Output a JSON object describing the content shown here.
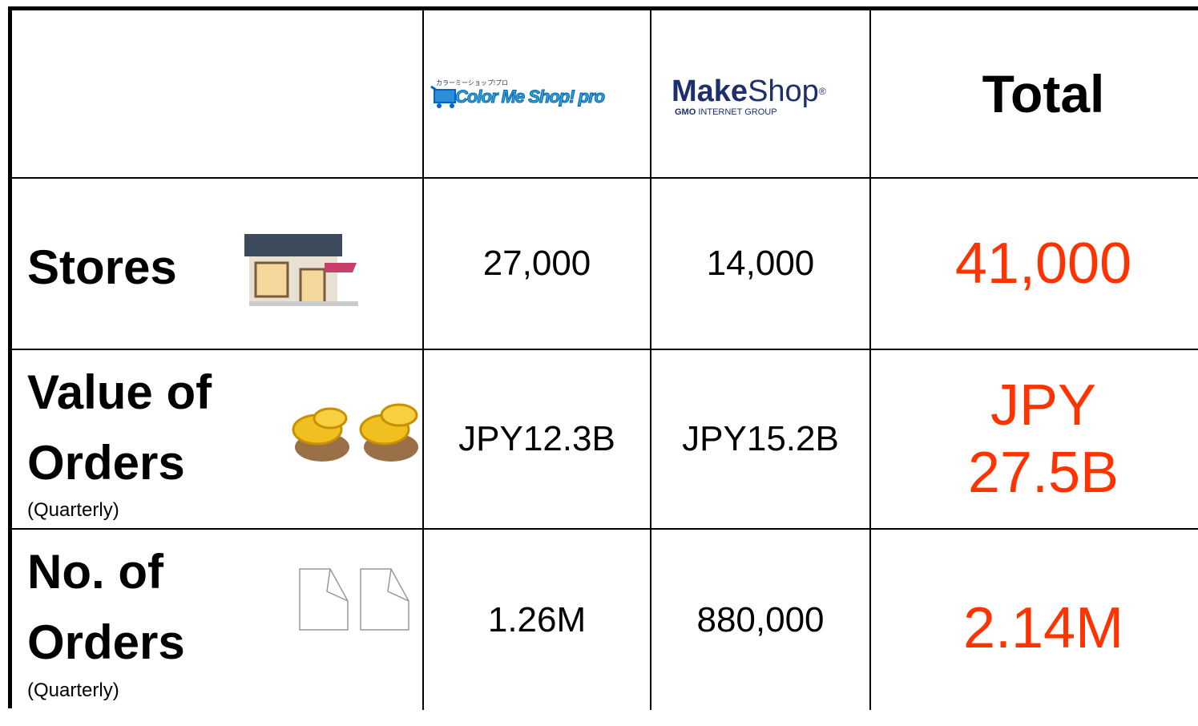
{
  "table": {
    "header": {
      "colorme": {
        "tagline": "カラーミーショップ!プロ",
        "name": "Color Me Shop! pro"
      },
      "makeshop": {
        "bold": "Make",
        "light": "Shop",
        "mark": "®",
        "group_bold": "GMO",
        "group": "INTERNET GROUP"
      },
      "total": "Total"
    },
    "rows": [
      {
        "label": "Stores",
        "values": [
          "27,000",
          "14,000"
        ],
        "total": "41,000"
      },
      {
        "label": "Value of Orders",
        "note": "(Quarterly)",
        "values": [
          "JPY12.3B",
          "JPY15.2B"
        ],
        "total": "JPY 27.5B"
      },
      {
        "label": "No. of Orders",
        "note": "(Quarterly)",
        "values": [
          "1.26M",
          "880,000"
        ],
        "total": "2.14M"
      }
    ]
  }
}
